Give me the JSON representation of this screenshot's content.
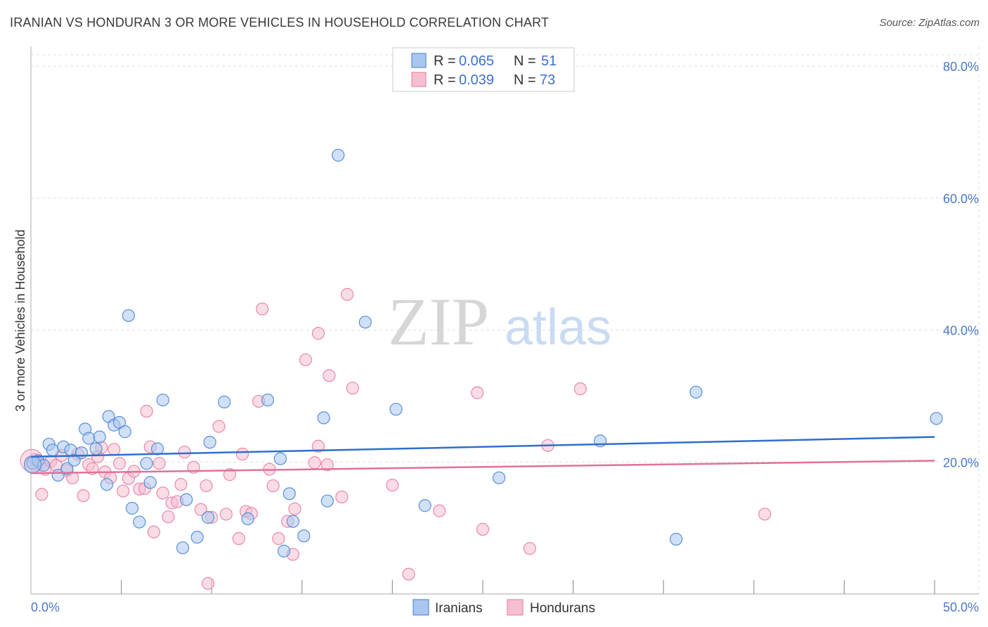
{
  "header": {
    "title": "IRANIAN VS HONDURAN 3 OR MORE VEHICLES IN HOUSEHOLD CORRELATION CHART",
    "source": "Source: ZipAtlas.com"
  },
  "watermark": {
    "zip": "ZIP",
    "atlas": "atlas"
  },
  "colors": {
    "iranians_fill": "#a9c6ee",
    "iranians_stroke": "#5b8fd6",
    "iranians_line": "#2f6fcc",
    "hondurans_fill": "#f6bfd0",
    "hondurans_stroke": "#e889a8",
    "hondurans_line": "#e0709a",
    "axis_text": "#4a78c8",
    "grid": "#dddddd"
  },
  "legend": {
    "rows": [
      {
        "r_label": "R =",
        "r_value": "0.065",
        "n_label": "N =",
        "n_value": "51"
      },
      {
        "r_label": "R =",
        "r_value": "0.039",
        "n_label": "N =",
        "n_value": "73"
      }
    ],
    "bottom": [
      "Iranians",
      "Hondurans"
    ]
  },
  "chart_data": {
    "type": "scatter",
    "title": "IRANIAN VS HONDURAN 3 OR MORE VEHICLES IN HOUSEHOLD CORRELATION CHART",
    "xlabel": "",
    "ylabel": "3 or more Vehicles in Household",
    "xlim": [
      0,
      50
    ],
    "ylim": [
      0,
      83
    ],
    "x_ticks": [
      "0.0%",
      "50.0%"
    ],
    "y_ticks": [
      {
        "value": 20,
        "label": "20.0%"
      },
      {
        "value": 40,
        "label": "40.0%"
      },
      {
        "value": 60,
        "label": "60.0%"
      },
      {
        "value": 80,
        "label": "80.0%"
      }
    ],
    "grid": true,
    "legend_position": "top-center",
    "series": [
      {
        "name": "Iranians",
        "r": 0.065,
        "n": 51,
        "trend": {
          "x": [
            0,
            50
          ],
          "y": [
            20.8,
            23.8
          ]
        },
        "points": [
          [
            0.1,
            19.8
          ],
          [
            0.4,
            20.2
          ],
          [
            0.7,
            19.5
          ],
          [
            1.0,
            22.7
          ],
          [
            1.2,
            21.8
          ],
          [
            1.5,
            18.0
          ],
          [
            1.8,
            22.3
          ],
          [
            2.0,
            19.0
          ],
          [
            2.2,
            21.8
          ],
          [
            2.4,
            20.3
          ],
          [
            2.8,
            21.4
          ],
          [
            3.0,
            25.0
          ],
          [
            3.2,
            23.6
          ],
          [
            3.6,
            22.0
          ],
          [
            3.8,
            23.8
          ],
          [
            4.2,
            16.6
          ],
          [
            4.3,
            26.9
          ],
          [
            4.6,
            25.6
          ],
          [
            4.9,
            26.0
          ],
          [
            5.2,
            24.6
          ],
          [
            5.4,
            42.2
          ],
          [
            5.6,
            13.0
          ],
          [
            6.0,
            10.9
          ],
          [
            6.4,
            19.8
          ],
          [
            6.6,
            16.9
          ],
          [
            7.0,
            22.0
          ],
          [
            7.3,
            29.4
          ],
          [
            8.4,
            7.0
          ],
          [
            8.6,
            14.3
          ],
          [
            9.2,
            8.6
          ],
          [
            9.8,
            11.6
          ],
          [
            9.9,
            23.0
          ],
          [
            10.7,
            29.1
          ],
          [
            12.0,
            11.4
          ],
          [
            13.1,
            29.4
          ],
          [
            13.8,
            20.5
          ],
          [
            14.3,
            15.2
          ],
          [
            14.5,
            11.0
          ],
          [
            14.0,
            6.5
          ],
          [
            15.1,
            8.8
          ],
          [
            16.2,
            26.7
          ],
          [
            16.4,
            14.1
          ],
          [
            17.0,
            66.5
          ],
          [
            18.5,
            41.2
          ],
          [
            20.2,
            28.0
          ],
          [
            21.8,
            13.4
          ],
          [
            25.9,
            17.6
          ],
          [
            31.5,
            23.2
          ],
          [
            35.7,
            8.3
          ],
          [
            36.8,
            30.6
          ],
          [
            50.1,
            26.6
          ]
        ]
      },
      {
        "name": "Hondurans",
        "r": 0.039,
        "n": 73,
        "trend": {
          "x": [
            0,
            50
          ],
          "y": [
            18.3,
            20.2
          ]
        },
        "points": [
          [
            0.2,
            20.4
          ],
          [
            0.5,
            19.8
          ],
          [
            0.6,
            15.1
          ],
          [
            0.8,
            18.9
          ],
          [
            1.1,
            20.1
          ],
          [
            1.4,
            19.5
          ],
          [
            1.7,
            21.0
          ],
          [
            2.0,
            18.7
          ],
          [
            2.3,
            17.6
          ],
          [
            2.6,
            21.2
          ],
          [
            2.9,
            14.9
          ],
          [
            3.2,
            19.6
          ],
          [
            3.4,
            19.0
          ],
          [
            3.7,
            20.8
          ],
          [
            3.9,
            22.2
          ],
          [
            4.1,
            18.5
          ],
          [
            4.4,
            17.6
          ],
          [
            4.6,
            21.9
          ],
          [
            4.9,
            19.8
          ],
          [
            5.1,
            15.6
          ],
          [
            5.4,
            17.5
          ],
          [
            5.7,
            18.6
          ],
          [
            6.0,
            15.9
          ],
          [
            6.3,
            16.0
          ],
          [
            6.4,
            27.7
          ],
          [
            6.6,
            22.3
          ],
          [
            6.8,
            9.4
          ],
          [
            7.1,
            19.8
          ],
          [
            7.3,
            15.3
          ],
          [
            7.6,
            11.7
          ],
          [
            7.8,
            13.8
          ],
          [
            8.1,
            14.0
          ],
          [
            8.3,
            16.6
          ],
          [
            8.5,
            21.5
          ],
          [
            9.0,
            19.2
          ],
          [
            9.4,
            12.8
          ],
          [
            9.7,
            16.4
          ],
          [
            10.0,
            11.6
          ],
          [
            9.8,
            1.6
          ],
          [
            10.4,
            25.4
          ],
          [
            10.8,
            12.1
          ],
          [
            11.0,
            18.1
          ],
          [
            11.5,
            8.4
          ],
          [
            11.7,
            21.2
          ],
          [
            11.9,
            12.5
          ],
          [
            12.2,
            12.2
          ],
          [
            12.6,
            29.2
          ],
          [
            12.8,
            43.2
          ],
          [
            13.2,
            18.9
          ],
          [
            13.4,
            16.4
          ],
          [
            13.7,
            8.4
          ],
          [
            14.2,
            11.0
          ],
          [
            14.5,
            6.0
          ],
          [
            14.6,
            12.9
          ],
          [
            15.2,
            35.5
          ],
          [
            15.7,
            19.9
          ],
          [
            15.9,
            22.4
          ],
          [
            15.9,
            39.5
          ],
          [
            16.4,
            19.6
          ],
          [
            16.5,
            33.1
          ],
          [
            17.2,
            14.7
          ],
          [
            17.5,
            45.4
          ],
          [
            17.8,
            31.2
          ],
          [
            20.0,
            16.5
          ],
          [
            20.9,
            3.0
          ],
          [
            22.6,
            12.6
          ],
          [
            24.7,
            30.5
          ],
          [
            25.0,
            9.8
          ],
          [
            27.6,
            6.9
          ],
          [
            28.6,
            22.5
          ],
          [
            30.4,
            31.1
          ],
          [
            40.6,
            12.1
          ],
          [
            0.0,
            20.0
          ]
        ]
      }
    ]
  }
}
